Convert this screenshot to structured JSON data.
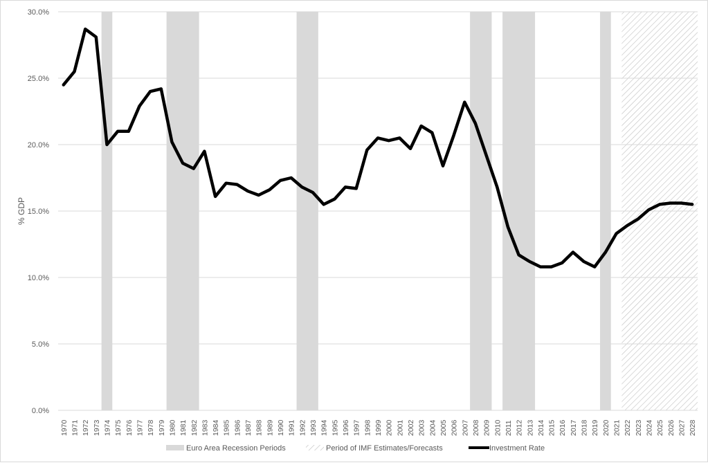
{
  "chart_data": {
    "type": "line",
    "title": "",
    "xlabel": "",
    "ylabel": "% GDP",
    "ylim": [
      0,
      30
    ],
    "yticks": [
      "0.0%",
      "5.0%",
      "10.0%",
      "15.0%",
      "20.0%",
      "25.0%",
      "30.0%"
    ],
    "grid": "horizontal",
    "legend_position": "bottom",
    "categories": [
      "1970",
      "1971",
      "1972",
      "1973",
      "1974",
      "1975",
      "1976",
      "1977",
      "1978",
      "1979",
      "1980",
      "1981",
      "1982",
      "1983",
      "1984",
      "1985",
      "1986",
      "1987",
      "1988",
      "1989",
      "1990",
      "1991",
      "1992",
      "1993",
      "1994",
      "1995",
      "1996",
      "1997",
      "1998",
      "1999",
      "2000",
      "2001",
      "2002",
      "2003",
      "2004",
      "2005",
      "2006",
      "2007",
      "2008",
      "2009",
      "2010",
      "2011",
      "2012",
      "2013",
      "2014",
      "2015",
      "2016",
      "2017",
      "2018",
      "2019",
      "2020",
      "2021",
      "2022",
      "2023",
      "2024",
      "2025",
      "2026",
      "2027",
      "2028"
    ],
    "series": [
      {
        "name": "Investment Rate",
        "color": "#000000",
        "values": [
          24.5,
          25.5,
          28.7,
          28.1,
          20.0,
          21.0,
          21.0,
          22.9,
          24.0,
          24.2,
          20.2,
          18.6,
          18.2,
          19.5,
          16.1,
          17.1,
          17.0,
          16.5,
          16.2,
          16.6,
          17.3,
          17.5,
          16.8,
          16.4,
          15.5,
          15.9,
          16.8,
          16.7,
          19.6,
          20.5,
          20.3,
          20.5,
          19.7,
          21.4,
          20.9,
          18.4,
          20.7,
          23.2,
          21.6,
          19.2,
          16.8,
          13.8,
          11.7,
          11.2,
          10.8,
          10.8,
          11.1,
          11.9,
          11.2,
          10.8,
          11.9,
          13.3,
          13.9,
          14.4,
          15.1,
          15.5,
          15.6,
          15.6,
          15.5
        ]
      }
    ],
    "recession_periods": [
      {
        "start": "1974",
        "end": "1974"
      },
      {
        "start": "1980",
        "end": "1982"
      },
      {
        "start": "1992",
        "end": "1993"
      },
      {
        "start": "2008",
        "end": "2009"
      },
      {
        "start": "2011",
        "end": "2013"
      },
      {
        "start": "2020",
        "end": "2020"
      }
    ],
    "forecast_period": {
      "start": "2022",
      "end": "2028"
    },
    "colors": {
      "recession": "#d9d9d9",
      "forecast_hatch": "#bfbfbf",
      "grid": "#d9d9d9",
      "axis_text": "#595959"
    },
    "legend": [
      {
        "label": "Euro Area Recession Periods",
        "style": "solid-gray"
      },
      {
        "label": "Period of IMF Estimates/Forecasts",
        "style": "hatched"
      },
      {
        "label": "Investment Rate",
        "style": "line"
      }
    ]
  }
}
